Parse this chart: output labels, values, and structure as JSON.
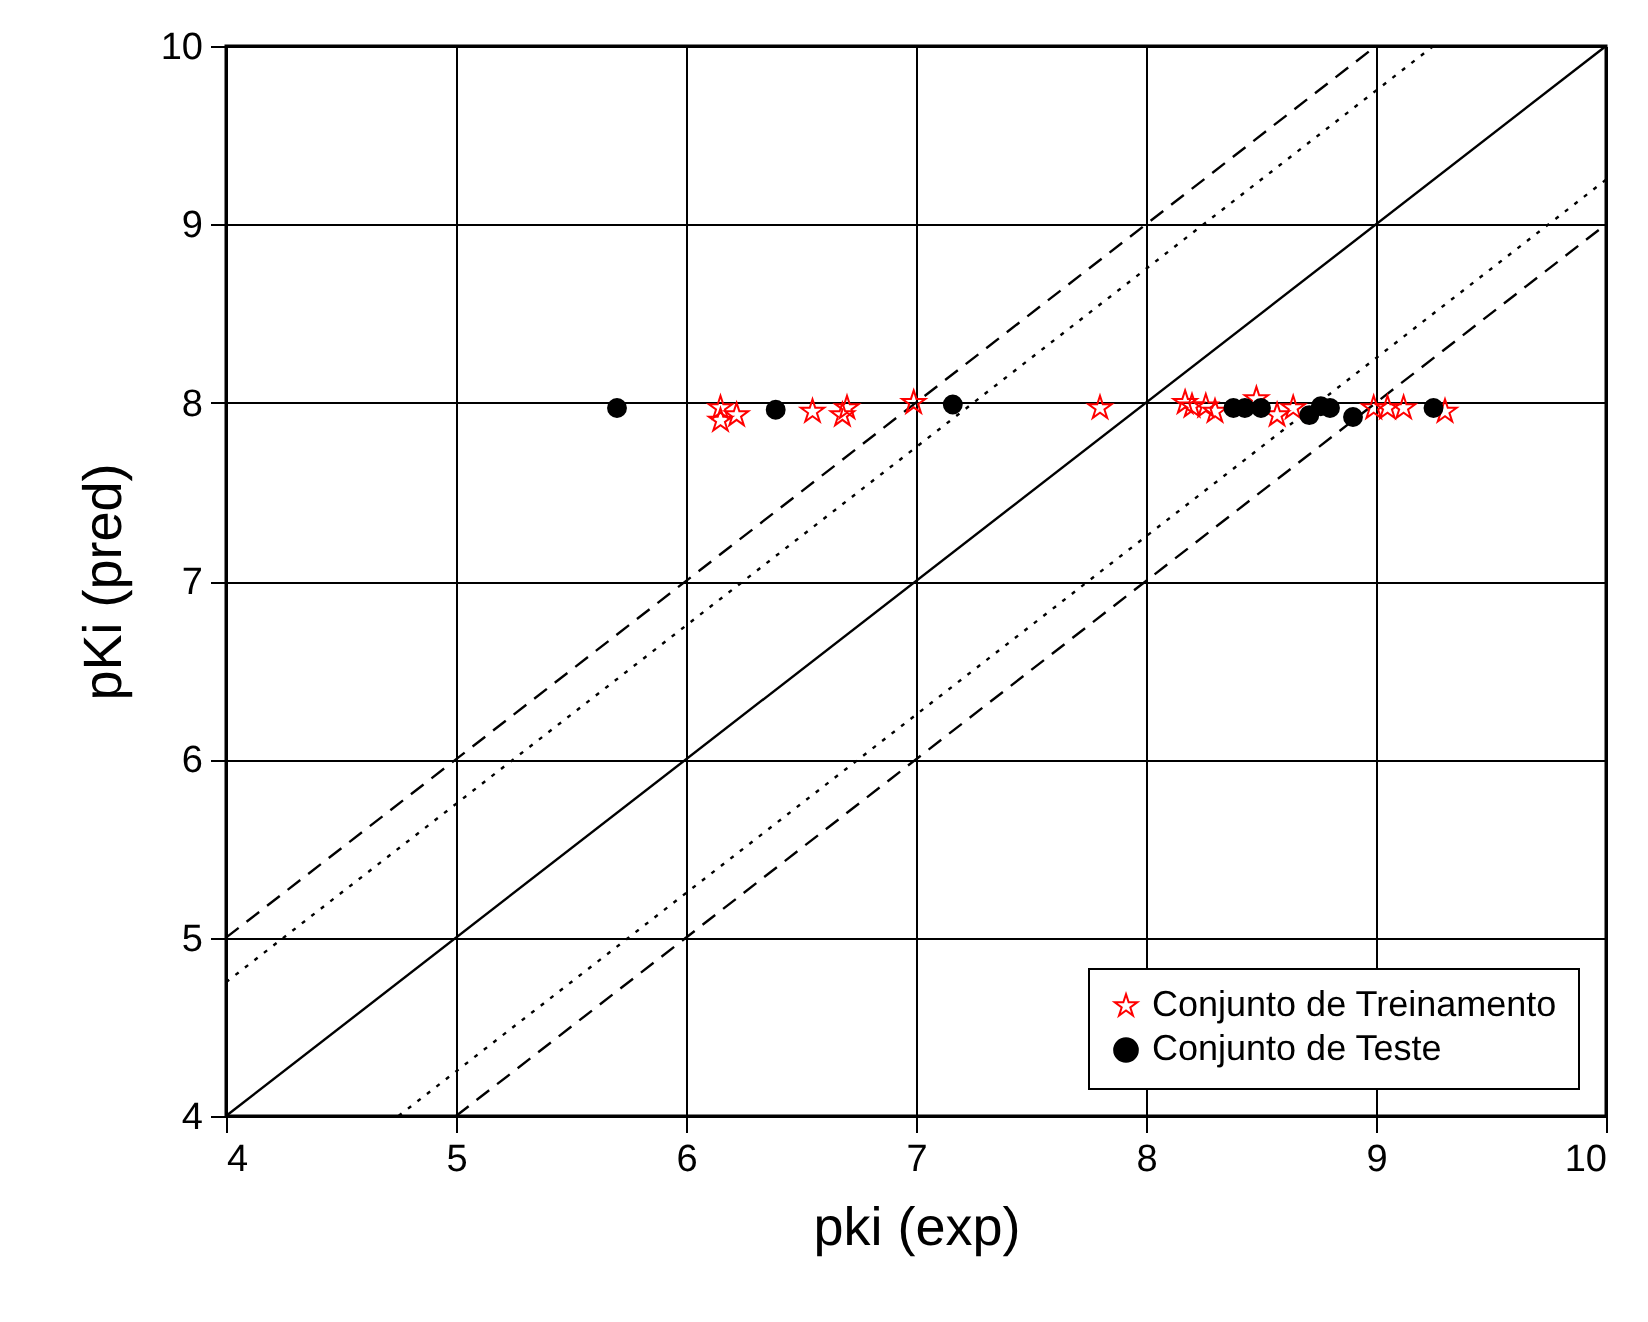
{
  "chart_data": {
    "type": "scatter",
    "xlabel": "pki (exp)",
    "ylabel": "pKi (pred)",
    "xlim": [
      4,
      10
    ],
    "ylim": [
      4,
      10
    ],
    "xticks": [
      4,
      5,
      6,
      7,
      8,
      9,
      10
    ],
    "yticks": [
      4,
      5,
      6,
      7,
      8,
      9,
      10
    ],
    "grid": true,
    "legend": "bottom right",
    "series": [
      {
        "type": "line",
        "color": "#000000",
        "line_style": "solid",
        "x": [
          4,
          10
        ],
        "values": [
          4,
          10
        ]
      },
      {
        "type": "line",
        "color": "#000000",
        "line_style": "dashed",
        "x": [
          4,
          9
        ],
        "values": [
          5,
          10
        ]
      },
      {
        "type": "line",
        "color": "#000000",
        "line_style": "dotted",
        "x": [
          4,
          9.25
        ],
        "values": [
          4.75,
          10
        ]
      },
      {
        "type": "line",
        "color": "#000000",
        "line_style": "dotted",
        "x": [
          4.75,
          10
        ],
        "values": [
          4,
          9.25
        ]
      },
      {
        "type": "line",
        "color": "#000000",
        "line_style": "dashed",
        "x": [
          5,
          10
        ],
        "values": [
          4,
          9
        ]
      },
      {
        "name": "Conjunto de Treinamento",
        "color": "#ff0000",
        "marker": "star",
        "x": [
          6.15,
          6.15,
          6.22,
          6.55,
          6.7,
          6.68,
          6.99,
          7.8,
          8.17,
          8.2,
          8.26,
          8.3,
          8.48,
          8.57,
          8.64,
          8.99,
          9.05,
          9.12,
          9.3
        ],
        "values": [
          7.97,
          7.9,
          7.93,
          7.95,
          7.97,
          7.93,
          8.0,
          7.97,
          8.0,
          7.98,
          7.98,
          7.95,
          8.02,
          7.93,
          7.97,
          7.97,
          7.97,
          7.97,
          7.95
        ]
      },
      {
        "name": "Conjunto de Teste",
        "color": "#000000",
        "marker": "circle",
        "x": [
          5.7,
          6.39,
          7.16,
          8.38,
          8.43,
          8.5,
          8.71,
          8.76,
          8.8,
          8.9,
          9.25
        ],
        "values": [
          7.97,
          7.96,
          7.99,
          7.97,
          7.97,
          7.97,
          7.93,
          7.98,
          7.97,
          7.92,
          7.97
        ]
      }
    ]
  }
}
